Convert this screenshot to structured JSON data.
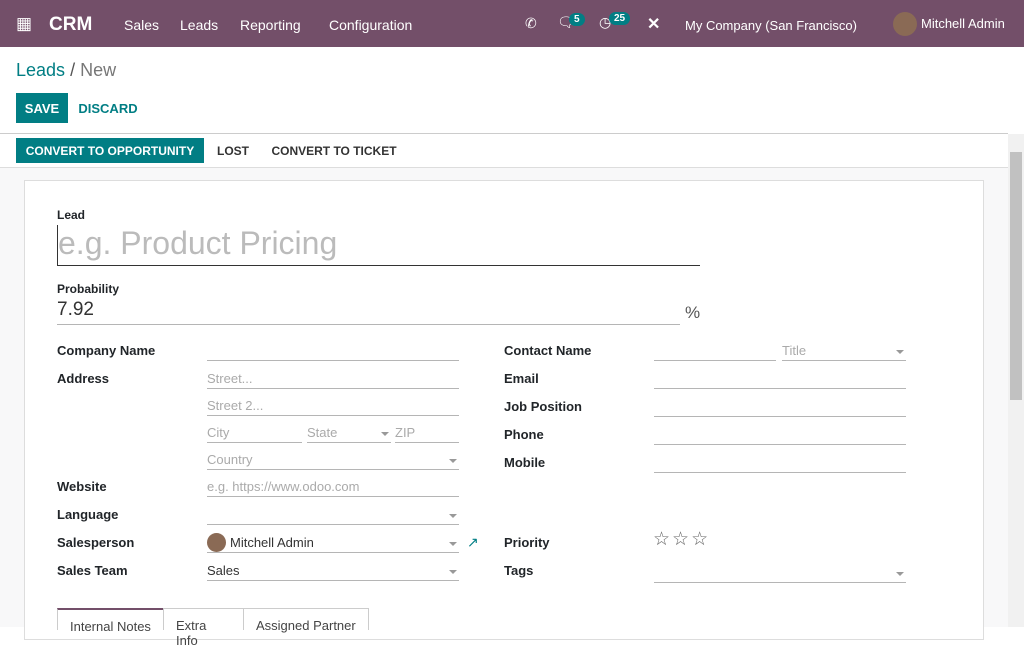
{
  "nav": {
    "app": "CRM",
    "menu": [
      "Sales",
      "Leads",
      "Reporting",
      "Configuration"
    ],
    "messages_count": "5",
    "activities_count": "25",
    "company": "My Company (San Francisco)",
    "user": "Mitchell Admin",
    "color": "#734f69"
  },
  "breadcrumb": {
    "parent": "Leads",
    "current": "New"
  },
  "actions": {
    "save": "Save",
    "discard": "Discard"
  },
  "statusbar": {
    "convert": "Convert to Opportunity",
    "lost": "Lost",
    "ticket": "Convert to Ticket"
  },
  "form": {
    "lead_label": "Lead",
    "lead_placeholder": "e.g. Product Pricing",
    "probability_label": "Probability",
    "probability": "7.92",
    "percent": "%",
    "company_label": "Company Name",
    "address_label": "Address",
    "street_ph": "Street...",
    "street2_ph": "Street 2...",
    "city_ph": "City",
    "state_ph": "State",
    "zip_ph": "ZIP",
    "country_ph": "Country",
    "website_label": "Website",
    "website_ph": "e.g. https://www.odoo.com",
    "language_label": "Language",
    "salesperson_label": "Salesperson",
    "salesperson": "Mitchell Admin",
    "team_label": "Sales Team",
    "team": "Sales",
    "contact_label": "Contact Name",
    "title_ph": "Title",
    "email_label": "Email",
    "job_label": "Job Position",
    "phone_label": "Phone",
    "mobile_label": "Mobile",
    "priority_label": "Priority",
    "priority_stars": 0,
    "priority_max": 3,
    "tags_label": "Tags"
  },
  "tabs": [
    "Internal Notes",
    "Extra Info",
    "Assigned Partner"
  ],
  "accent": "#017e84"
}
